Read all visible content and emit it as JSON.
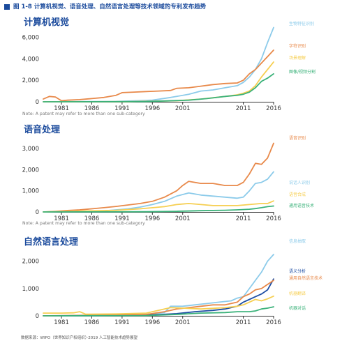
{
  "header": {
    "title": "图 1-8 计算机视觉、语音处理、自然语言处理等技术领域的专利发布趋势"
  },
  "footer": {
    "source": "数据来源：WIPO（世界知识产权组织）·2019 人工智能技术趋势展望"
  },
  "colors": {
    "light_blue": "#8ccbea",
    "orange": "#e8894a",
    "yellow": "#f6cf52",
    "green": "#3bb27a",
    "dark_blue": "#1e4ea3",
    "title_blue": "#1a4a9c",
    "axis": "#333333",
    "note": "#777777"
  },
  "chart_data": [
    {
      "type": "line",
      "title": "计算机视觉",
      "note": "Note: A patent may refer to more than one sub-category",
      "xlim": [
        1978,
        2016
      ],
      "ylim": [
        0,
        7000
      ],
      "yticks": [
        0,
        2000,
        4000,
        6000
      ],
      "ytick_labels": [
        "0",
        "2,000",
        "4,000",
        "6,000"
      ],
      "xticks": [
        1981,
        1986,
        1991,
        1996,
        2001,
        2011,
        2016
      ],
      "xtick_labels": [
        "1981",
        "1986",
        "1991",
        "1996",
        "2001",
        "2011",
        "2016"
      ],
      "series": [
        {
          "name": "生物特征识别",
          "color": "light_blue",
          "x": [
            1978,
            1990,
            1996,
            1999,
            2002,
            2004,
            2006,
            2008,
            2010,
            2011,
            2012,
            2013,
            2014,
            2015,
            2016
          ],
          "values": [
            0,
            30,
            150,
            400,
            700,
            1000,
            1100,
            1300,
            1500,
            1800,
            2300,
            3000,
            4000,
            5500,
            6900
          ]
        },
        {
          "name": "字符识别",
          "color": "orange",
          "x": [
            1978,
            1979,
            1980,
            1981,
            1982,
            1984,
            1986,
            1988,
            1990,
            1991,
            1993,
            1995,
            1997,
            1999,
            2000,
            2002,
            2004,
            2006,
            2008,
            2010,
            2011,
            2012,
            2013,
            2014,
            2015,
            2016
          ],
          "values": [
            250,
            500,
            450,
            100,
            150,
            200,
            300,
            400,
            600,
            850,
            900,
            950,
            1000,
            1050,
            1250,
            1300,
            1450,
            1600,
            1700,
            1750,
            2000,
            2600,
            3000,
            3600,
            4200,
            4800
          ]
        },
        {
          "name": "场景理解",
          "color": "yellow",
          "x": [
            1978,
            1992,
            2000,
            2004,
            2008,
            2010,
            2011,
            2012,
            2013,
            2014,
            2015,
            2016
          ],
          "values": [
            0,
            10,
            100,
            250,
            500,
            650,
            800,
            1000,
            1500,
            2300,
            3000,
            3700
          ]
        },
        {
          "name": "图像/视频分割",
          "color": "green",
          "x": [
            1978,
            1995,
            2002,
            2005,
            2008,
            2010,
            2011,
            2012,
            2013,
            2014,
            2015,
            2016
          ],
          "values": [
            0,
            20,
            150,
            300,
            500,
            600,
            700,
            900,
            1300,
            1900,
            2200,
            2600
          ]
        }
      ]
    },
    {
      "type": "line",
      "title": "语音处理",
      "note": "Note: A patent may refer to more than one sub-category",
      "xlim": [
        1978,
        2016
      ],
      "ylim": [
        0,
        3300
      ],
      "yticks": [
        0,
        1000,
        2000,
        3000
      ],
      "ytick_labels": [
        "0",
        "1,000",
        "2,000",
        "3,000"
      ],
      "xticks": [
        1981,
        1986,
        1991,
        1996,
        2001,
        2011,
        2016
      ],
      "xtick_labels": [
        "1981",
        "1986",
        "1991",
        "1996",
        "2001",
        "2011",
        "2016"
      ],
      "series": [
        {
          "name": "语音识别",
          "color": "orange",
          "x": [
            1978,
            1980,
            1982,
            1984,
            1986,
            1988,
            1990,
            1992,
            1994,
            1996,
            1998,
            2000,
            2001,
            2002,
            2003,
            2004,
            2006,
            2008,
            2010,
            2011,
            2012,
            2013,
            2014,
            2015,
            2016
          ],
          "values": [
            0,
            30,
            70,
            100,
            150,
            200,
            260,
            330,
            400,
            500,
            700,
            1000,
            1250,
            1450,
            1400,
            1350,
            1350,
            1250,
            1250,
            1400,
            1800,
            2300,
            2250,
            2550,
            3250
          ]
        },
        {
          "name": "说话人识别",
          "color": "light_blue",
          "x": [
            1978,
            1988,
            1992,
            1994,
            1996,
            1998,
            2000,
            2002,
            2004,
            2006,
            2008,
            2010,
            2011,
            2012,
            2013,
            2014,
            2015,
            2016
          ],
          "values": [
            0,
            50,
            150,
            230,
            350,
            500,
            750,
            900,
            800,
            750,
            700,
            650,
            700,
            1000,
            1350,
            1400,
            1550,
            1900
          ]
        },
        {
          "name": "语音合成",
          "color": "yellow",
          "x": [
            1978,
            1990,
            1994,
            1998,
            2000,
            2002,
            2004,
            2006,
            2010,
            2012,
            2014,
            2015,
            2016
          ],
          "values": [
            0,
            80,
            150,
            250,
            350,
            400,
            350,
            300,
            300,
            350,
            400,
            400,
            520
          ]
        },
        {
          "name": "通用语音技术",
          "color": "green",
          "x": [
            1978,
            1995,
            2000,
            2004,
            2008,
            2010,
            2012,
            2013,
            2014,
            2015,
            2016
          ],
          "values": [
            0,
            10,
            30,
            60,
            80,
            100,
            130,
            160,
            200,
            250,
            280
          ]
        }
      ]
    },
    {
      "type": "line",
      "title": "自然语言处理",
      "note": "",
      "xlim": [
        1978,
        2016
      ],
      "ylim": [
        0,
        2300
      ],
      "yticks": [
        0,
        1000,
        2000
      ],
      "ytick_labels": [
        "0",
        "1,000",
        "2,000"
      ],
      "xticks": [
        1981,
        1986,
        1991,
        1996,
        2001,
        2011,
        2016
      ],
      "xtick_labels": [
        "1981",
        "1986",
        "1991",
        "1996",
        "2001",
        "2011",
        "2016"
      ],
      "series": [
        {
          "name": "信息抽取",
          "color": "light_blue",
          "x": [
            1978,
            1990,
            1995,
            1998,
            1999,
            2001,
            2003,
            2005,
            2007,
            2009,
            2010,
            2011,
            2012,
            2013,
            2014,
            2015,
            2016
          ],
          "values": [
            0,
            10,
            50,
            120,
            350,
            350,
            400,
            450,
            500,
            550,
            650,
            700,
            1000,
            1300,
            1600,
            2000,
            2250
          ]
        },
        {
          "name": "语义分析",
          "color": "dark_blue",
          "x": [
            1978,
            1995,
            2000,
            2003,
            2006,
            2008,
            2010,
            2011,
            2012,
            2013,
            2014,
            2015,
            2016
          ],
          "values": [
            0,
            20,
            80,
            150,
            200,
            250,
            350,
            500,
            600,
            700,
            800,
            950,
            1350
          ]
        },
        {
          "name": "通用自然语言技术",
          "color": "orange",
          "x": [
            1978,
            1995,
            1998,
            2000,
            2002,
            2004,
            2006,
            2008,
            2010,
            2011,
            2012,
            2013,
            2014,
            2015,
            2016
          ],
          "values": [
            0,
            50,
            150,
            250,
            300,
            350,
            400,
            400,
            500,
            700,
            800,
            950,
            1000,
            1150,
            1300
          ]
        },
        {
          "name": "机器翻译",
          "color": "yellow",
          "x": [
            1978,
            1981,
            1983,
            1984,
            1985,
            1990,
            1995,
            1999,
            2001,
            2004,
            2008,
            2010,
            2011,
            2012,
            2013,
            2014,
            2015,
            2016
          ],
          "values": [
            100,
            100,
            110,
            150,
            60,
            70,
            100,
            300,
            280,
            250,
            300,
            350,
            400,
            500,
            600,
            550,
            620,
            720
          ]
        },
        {
          "name": "机器对话",
          "color": "green",
          "x": [
            1978,
            1995,
            2000,
            2004,
            2008,
            2010,
            2012,
            2013,
            2014,
            2015,
            2016
          ],
          "values": [
            0,
            10,
            50,
            100,
            120,
            150,
            150,
            180,
            250,
            280,
            330
          ]
        }
      ]
    }
  ]
}
